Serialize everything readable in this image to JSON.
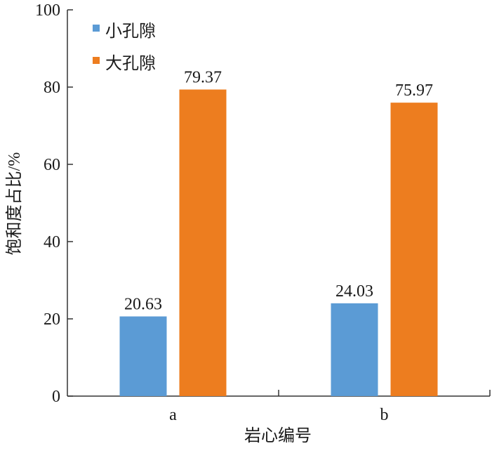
{
  "chart_data": {
    "type": "bar",
    "categories": [
      "a",
      "b"
    ],
    "series": [
      {
        "name": "小孔隙",
        "values": [
          20.63,
          24.03
        ],
        "color": "#5b9bd5"
      },
      {
        "name": "大孔隙",
        "values": [
          79.37,
          75.97
        ],
        "color": "#ed7d1f"
      }
    ],
    "data_labels": [
      [
        "20.63",
        "24.03"
      ],
      [
        "79.37",
        "75.97"
      ]
    ],
    "title": "",
    "xlabel": "岩心编号",
    "ylabel": "饱和度占比/%",
    "ylim": [
      0,
      100
    ],
    "yticks": [
      "0",
      "20",
      "40",
      "60",
      "80",
      "100"
    ],
    "grid": false,
    "legend_position": "top-left"
  }
}
